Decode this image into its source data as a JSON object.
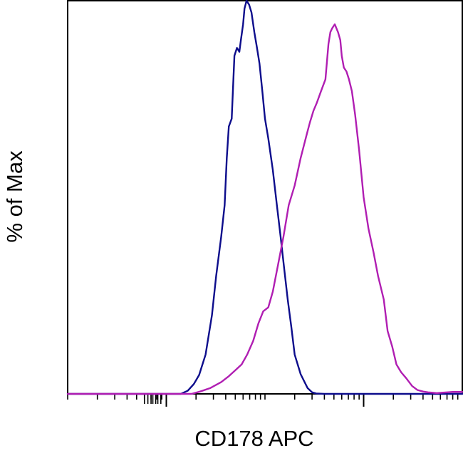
{
  "chart_data": {
    "type": "line",
    "title": "",
    "xlabel": "CD178 APC",
    "ylabel": "% of Max",
    "x_scale": "log",
    "xlim": [
      100,
      1000000
    ],
    "ylim": [
      0,
      100
    ],
    "grid": false,
    "legend": "none",
    "major_ticks": [
      1000,
      100000,
      1000000
    ],
    "series": [
      {
        "color": "#0d0d8c",
        "x": [
          100,
          1400,
          1650,
          1900,
          2150,
          2500,
          2900,
          3200,
          3600,
          3900,
          4100,
          4300,
          4600,
          4900,
          5200,
          5500,
          5700,
          6000,
          6200,
          6500,
          6900,
          7300,
          7800,
          8300,
          8800,
          9400,
          10000,
          10800,
          12000,
          13200,
          14400,
          15800,
          17000,
          18500,
          20000,
          23000,
          27000,
          30000,
          33000,
          40000,
          1000000
        ],
        "y": [
          0,
          0,
          0.8,
          2.5,
          4.8,
          10,
          20,
          30,
          40,
          48,
          60,
          68,
          70,
          86,
          88,
          87,
          90,
          94,
          98,
          100,
          99,
          97,
          92,
          88,
          84,
          77,
          70,
          65,
          57,
          48,
          40,
          31,
          24,
          17,
          10,
          5,
          1.5,
          0.4,
          0.1,
          0,
          0
        ]
      },
      {
        "color": "#b01eb2",
        "x": [
          100,
          1800,
          2200,
          2800,
          3600,
          4300,
          5000,
          5800,
          6600,
          7600,
          8600,
          9600,
          10800,
          12000,
          13600,
          15400,
          17400,
          20000,
          23000,
          26500,
          28500,
          31000,
          33500,
          37000,
          41000,
          44000,
          46000,
          48000,
          51000,
          55000,
          58000,
          60000,
          63000,
          67000,
          71000,
          76000,
          82000,
          90000,
          100000,
          112000,
          126000,
          140000,
          160000,
          175000,
          195000,
          215000,
          240000,
          270000,
          310000,
          350000,
          400000,
          450000,
          500000,
          550000,
          620000,
          700000,
          800000,
          1000000
        ],
        "y": [
          0,
          0,
          0.6,
          1.5,
          3,
          4.5,
          6,
          7.5,
          10,
          13.5,
          18,
          21,
          22,
          26,
          33,
          40,
          48,
          53,
          60,
          66,
          69,
          72,
          74,
          77,
          80,
          89,
          92,
          93,
          94,
          92,
          90,
          86,
          83,
          82,
          80,
          77,
          71,
          62,
          50,
          42,
          36,
          30,
          24,
          16,
          12,
          7.5,
          5.5,
          4,
          2,
          1,
          0.6,
          0.4,
          0.3,
          0.2,
          0.3,
          0.4,
          0.5,
          0.5
        ]
      }
    ]
  }
}
